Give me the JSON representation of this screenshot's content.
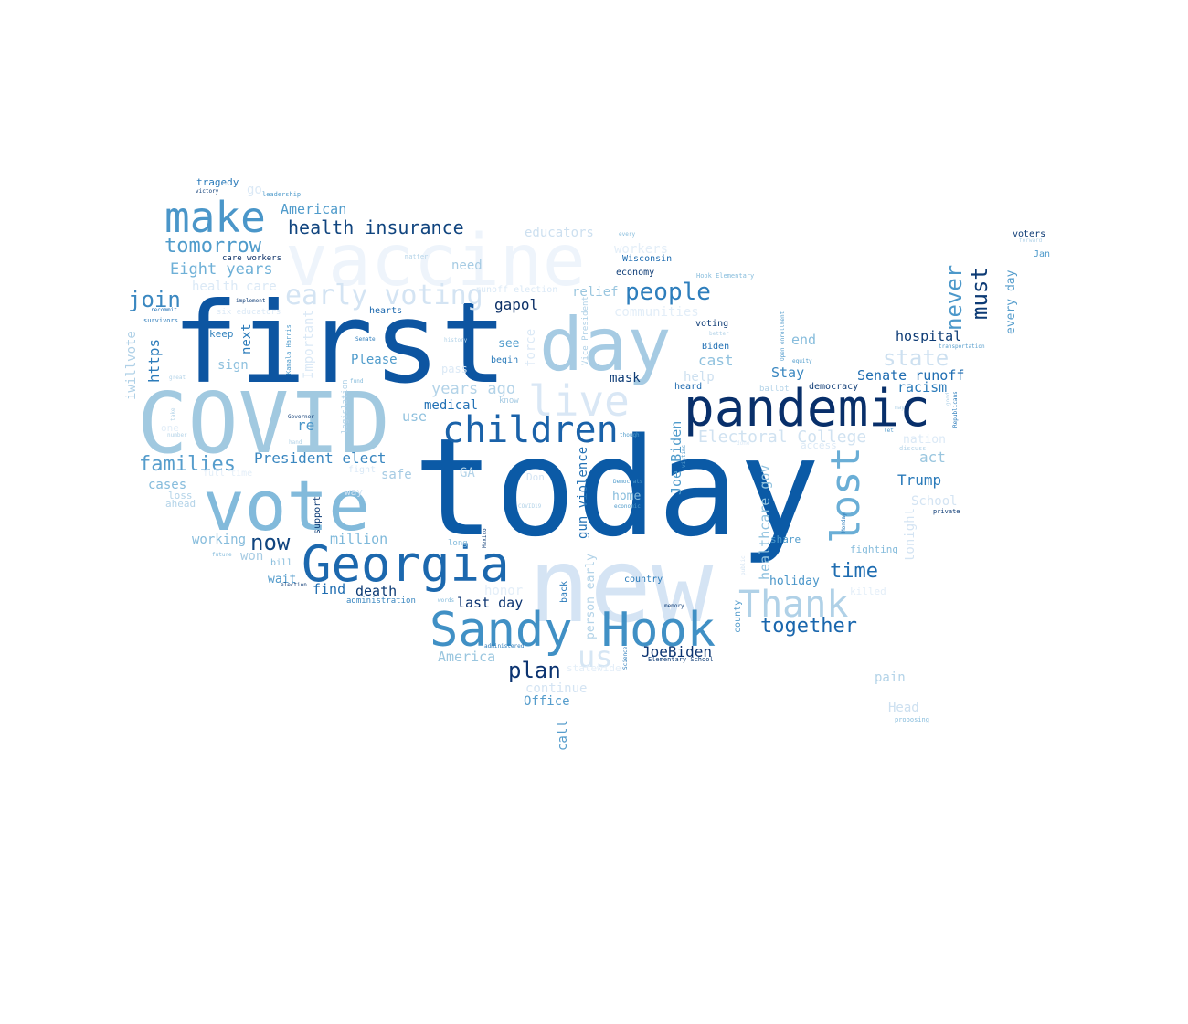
{
  "words": [
    {
      "text": "today",
      "color": "#0b5aa6"
    },
    {
      "text": "first",
      "color": "#0d55a1"
    },
    {
      "text": "new",
      "color": "#d5e4f4"
    },
    {
      "text": "COVID",
      "color": "#a1c9e0"
    },
    {
      "text": "vaccine",
      "color": "#eef4fb"
    },
    {
      "text": "vote",
      "color": "#82badb"
    },
    {
      "text": "day",
      "color": "#a6cbe3"
    },
    {
      "text": "pandemic",
      "color": "#082f6a"
    },
    {
      "text": "Georgia",
      "color": "#1c68ae"
    },
    {
      "text": "Sandy Hook",
      "color": "#4090c5"
    },
    {
      "text": "make",
      "color": "#4a96c9"
    },
    {
      "text": "children",
      "color": "#1a62a9"
    },
    {
      "text": "live",
      "color": "#d9e7f5"
    },
    {
      "text": "lost",
      "color": "#6aaed6"
    },
    {
      "text": "Thank",
      "color": "#b0d1e7"
    },
    {
      "text": "early voting",
      "color": "#d4e4f3"
    },
    {
      "text": "health insurance",
      "color": "#11457f"
    },
    {
      "text": "people",
      "color": "#2e7ebc"
    },
    {
      "text": "tomorrow",
      "color": "#4f9bcb"
    },
    {
      "text": "families",
      "color": "#569dcc"
    },
    {
      "text": "join",
      "color": "#3a87c0"
    },
    {
      "text": "never",
      "color": "#4c98ca"
    },
    {
      "text": "must",
      "color": "#0d3b75"
    },
    {
      "text": "together",
      "color": "#1966ad"
    },
    {
      "text": "state",
      "color": "#cde0f0"
    },
    {
      "text": "Eight years",
      "color": "#6eb0d7"
    },
    {
      "text": "plan",
      "color": "#0b3370"
    },
    {
      "text": "us",
      "color": "#d6e6f4"
    },
    {
      "text": "now",
      "color": "#11457f"
    },
    {
      "text": "time",
      "color": "#1f6db1"
    },
    {
      "text": "Electoral College",
      "color": "#d0e2f1"
    },
    {
      "text": "President elect",
      "color": "#3a87c0"
    },
    {
      "text": "JoeBiden",
      "color": "#0b3370"
    },
    {
      "text": "last day",
      "color": "#0b3370"
    },
    {
      "text": "America",
      "color": "#9ac6df"
    },
    {
      "text": "American",
      "color": "#4f9bcb"
    },
    {
      "text": "hospital",
      "color": "#0d3b75"
    },
    {
      "text": "Senate runoff",
      "color": "#1f6db1"
    },
    {
      "text": "million",
      "color": "#7db8da"
    },
    {
      "text": "death",
      "color": "#0d3b75"
    },
    {
      "text": "find",
      "color": "#1f6db1"
    },
    {
      "text": "Trump",
      "color": "#2b7bba"
    },
    {
      "text": "act",
      "color": "#9ac6df"
    },
    {
      "text": "gapol",
      "color": "#0b2f66"
    },
    {
      "text": "racism",
      "color": "#2b7bba"
    },
    {
      "text": "end",
      "color": "#86bcdc"
    },
    {
      "text": "Stay",
      "color": "#3a87c0"
    },
    {
      "text": "cast",
      "color": "#8fc1de"
    },
    {
      "text": "years ago",
      "color": "#b3d3e8"
    },
    {
      "text": "medical",
      "color": "#2472b5"
    },
    {
      "text": "mask",
      "color": "#0d3b75"
    },
    {
      "text": "relief",
      "color": "#9ac6df"
    },
    {
      "text": "need",
      "color": "#a6cbe3"
    },
    {
      "text": "https",
      "color": "#2b7bba"
    },
    {
      "text": "iwillvote",
      "color": "#b0d1e7"
    },
    {
      "text": "next",
      "color": "#2b7bba"
    },
    {
      "text": "sign",
      "color": "#8fc1de"
    },
    {
      "text": "Please",
      "color": "#4f9bcb"
    },
    {
      "text": "use",
      "color": "#8fc1de"
    },
    {
      "text": "re",
      "color": "#4a96c9"
    },
    {
      "text": "safe",
      "color": "#a6cbe3"
    },
    {
      "text": "GA",
      "color": "#b3d3e8"
    },
    {
      "text": "cases",
      "color": "#86bcdc"
    },
    {
      "text": "working",
      "color": "#86bcdc"
    },
    {
      "text": "won",
      "color": "#a6cbe3"
    },
    {
      "text": "wait",
      "color": "#569dcc"
    },
    {
      "text": "holiday",
      "color": "#4a96c9"
    },
    {
      "text": "fighting",
      "color": "#86bcdc"
    },
    {
      "text": "School",
      "color": "#d4e4f3"
    },
    {
      "text": "pain",
      "color": "#b3d3e8"
    },
    {
      "text": "Head",
      "color": "#cde0f0"
    },
    {
      "text": "Office",
      "color": "#569dcc"
    },
    {
      "text": "continue",
      "color": "#d4e4f3"
    },
    {
      "text": "call",
      "color": "#569dcc"
    },
    {
      "text": "educators",
      "color": "#cde0f0"
    },
    {
      "text": "workers",
      "color": "#e3eef8"
    },
    {
      "text": "health care",
      "color": "#dbe9f6"
    },
    {
      "text": "go",
      "color": "#dbe9f6"
    },
    {
      "text": "tragedy",
      "color": "#2b7bba"
    },
    {
      "text": "victory",
      "color": "#0d3b75"
    },
    {
      "text": "leadership",
      "color": "#4f9bcb"
    },
    {
      "text": "care workers",
      "color": "#0b2f66"
    },
    {
      "text": "Wisconsin",
      "color": "#1f6db1"
    },
    {
      "text": "economy",
      "color": "#0d3b75"
    },
    {
      "text": "communities",
      "color": "#e3eef8"
    },
    {
      "text": "voters",
      "color": "#0d3b75"
    },
    {
      "text": "Jan",
      "color": "#4f9bcb"
    },
    {
      "text": "every day",
      "color": "#569dcc"
    },
    {
      "text": "voting",
      "color": "#0d3b75"
    },
    {
      "text": "Biden",
      "color": "#2472b5"
    },
    {
      "text": "hearts",
      "color": "#1966ad"
    },
    {
      "text": "keep",
      "color": "#3a87c0"
    },
    {
      "text": "see",
      "color": "#4f9bcb"
    },
    {
      "text": "begin",
      "color": "#2b7bba"
    },
    {
      "text": "heard",
      "color": "#1966ad"
    },
    {
      "text": "democracy",
      "color": "#0d3b75"
    },
    {
      "text": "home",
      "color": "#86bcdc"
    },
    {
      "text": "country",
      "color": "#2b7bba"
    },
    {
      "text": "Joe Biden",
      "color": "#4f9bcb"
    },
    {
      "text": "gun violence",
      "color": "#2472b5"
    },
    {
      "text": "healthcare gov",
      "color": "#8fc1de"
    },
    {
      "text": "tonight",
      "color": "#d4e4f3"
    },
    {
      "text": "nation",
      "color": "#dbe9f6"
    },
    {
      "text": "share",
      "color": "#4f9bcb"
    },
    {
      "text": "help",
      "color": "#cde0f0"
    },
    {
      "text": "runoff election",
      "color": "#dbe9f6"
    },
    {
      "text": "force",
      "color": "#dbe9f6"
    },
    {
      "text": "person early",
      "color": "#b3d3e8"
    },
    {
      "text": "back",
      "color": "#2b7bba"
    },
    {
      "text": "support",
      "color": "#0d3b75"
    },
    {
      "text": "county",
      "color": "#569dcc"
    },
    {
      "text": "Kamala Harris",
      "color": "#4f9bcb"
    },
    {
      "text": "legislation",
      "color": "#b0d1e7"
    },
    {
      "text": "Important",
      "color": "#dbe9f6"
    },
    {
      "text": "six educators",
      "color": "#dbe9f6"
    },
    {
      "text": "survivors",
      "color": "#2b7bba"
    },
    {
      "text": "implement",
      "color": "#0d3b75"
    },
    {
      "text": "recommit",
      "color": "#2472b5"
    },
    {
      "text": "Senate",
      "color": "#2b7bba"
    },
    {
      "text": "Governor",
      "color": "#0d3b75"
    },
    {
      "text": "administration",
      "color": "#3a87c0"
    },
    {
      "text": "election",
      "color": "#0d3b75"
    },
    {
      "text": "bill",
      "color": "#86bcdc"
    },
    {
      "text": "Elementary School",
      "color": "#0d3b75"
    },
    {
      "text": "administered",
      "color": "#2b7bba"
    },
    {
      "text": "Science",
      "color": "#2b7bba"
    },
    {
      "text": "Mexico",
      "color": "#0d3b75"
    },
    {
      "text": "private",
      "color": "#0d3b75"
    },
    {
      "text": "Democrats",
      "color": "#4f9bcb"
    },
    {
      "text": "economic",
      "color": "#4f9bcb"
    },
    {
      "text": "memory",
      "color": "#0d3b75"
    },
    {
      "text": "Monday",
      "color": "#2b7bba"
    },
    {
      "text": "transportation",
      "color": "#569dcc"
    },
    {
      "text": "equity",
      "color": "#4f9bcb"
    },
    {
      "text": "Open enrollment",
      "color": "#569dcc"
    },
    {
      "text": "Republicans",
      "color": "#2b7bba"
    },
    {
      "text": "Hook Elementary",
      "color": "#86bcdc"
    },
    {
      "text": "Vice President",
      "color": "#b0d1e7"
    },
    {
      "text": "proposing",
      "color": "#86bcdc"
    },
    {
      "text": "every",
      "color": "#86bcdc"
    },
    {
      "text": "matter",
      "color": "#b3d3e8"
    },
    {
      "text": "history",
      "color": "#b3d3e8"
    },
    {
      "text": "pass",
      "color": "#dbe9f6"
    },
    {
      "text": "know",
      "color": "#a6cbe3"
    },
    {
      "text": "loss",
      "color": "#b3d3e8"
    },
    {
      "text": "ahead",
      "color": "#b3d3e8"
    },
    {
      "text": "way",
      "color": "#d4e4f3"
    },
    {
      "text": "fund",
      "color": "#86bcdc"
    },
    {
      "text": "ballot",
      "color": "#b3d3e8"
    },
    {
      "text": "access",
      "color": "#dbe9f6"
    },
    {
      "text": "fight",
      "color": "#dbe9f6"
    },
    {
      "text": "Don",
      "color": "#d4e4f3"
    },
    {
      "text": "long",
      "color": "#86bcdc"
    },
    {
      "text": "honor",
      "color": "#e3eef8"
    },
    {
      "text": "words",
      "color": "#86bcdc"
    },
    {
      "text": "future",
      "color": "#86bcdc"
    },
    {
      "text": "hand",
      "color": "#b3d3e8"
    },
    {
      "text": "great",
      "color": "#b3d3e8"
    },
    {
      "text": "take",
      "color": "#b3d3e8"
    },
    {
      "text": "number",
      "color": "#b3d3e8"
    },
    {
      "text": "COVID19",
      "color": "#b3d3e8"
    },
    {
      "text": "though",
      "color": "#4f9bcb"
    },
    {
      "text": "statewide",
      "color": "#e3eef8"
    },
    {
      "text": "better",
      "color": "#b3d3e8"
    },
    {
      "text": "public",
      "color": "#d4e4f3"
    },
    {
      "text": "victims",
      "color": "#569dcc"
    },
    {
      "text": "done",
      "color": "#dbe9f6"
    },
    {
      "text": "let",
      "color": "#569dcc"
    },
    {
      "text": "discuss",
      "color": "#b3d3e8"
    },
    {
      "text": "may",
      "color": "#b3d3e8"
    },
    {
      "text": "forward",
      "color": "#b3d3e8"
    },
    {
      "text": "good",
      "color": "#b3d3e8"
    },
    {
      "text": "killed",
      "color": "#e3eef8"
    },
    {
      "text": "one",
      "color": "#e3eef8"
    },
    {
      "text": "full time",
      "color": "#e3eef8"
    }
  ]
}
